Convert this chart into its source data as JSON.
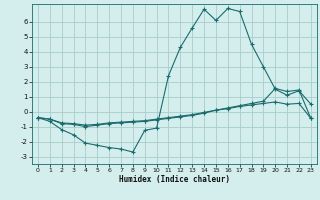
{
  "xlabel": "Humidex (Indice chaleur)",
  "bg_color": "#d4eeee",
  "grid_color": "#aacccc",
  "line_color": "#1a6b6b",
  "xlim": [
    -0.5,
    23.5
  ],
  "ylim": [
    -3.5,
    7.2
  ],
  "yticks": [
    -3,
    -2,
    -1,
    0,
    1,
    2,
    3,
    4,
    5,
    6
  ],
  "xticks": [
    0,
    1,
    2,
    3,
    4,
    5,
    6,
    7,
    8,
    9,
    10,
    11,
    12,
    13,
    14,
    15,
    16,
    17,
    18,
    19,
    20,
    21,
    22,
    23
  ],
  "series1_x": [
    0,
    1,
    2,
    3,
    4,
    5,
    6,
    7,
    8,
    9,
    10,
    11,
    12,
    13,
    14,
    15,
    16,
    17,
    18,
    19,
    20,
    21,
    22,
    23
  ],
  "series1_y": [
    -0.4,
    -0.65,
    -1.2,
    -1.55,
    -2.1,
    -2.25,
    -2.4,
    -2.5,
    -2.7,
    -1.25,
    -1.1,
    2.4,
    4.3,
    5.6,
    6.85,
    6.1,
    6.9,
    6.7,
    4.5,
    3.0,
    1.5,
    1.1,
    1.4,
    0.5
  ],
  "series2_x": [
    0,
    1,
    2,
    3,
    4,
    5,
    6,
    7,
    8,
    9,
    10,
    11,
    12,
    13,
    14,
    15,
    16,
    17,
    18,
    19,
    20,
    21,
    22,
    23
  ],
  "series2_y": [
    -0.4,
    -0.5,
    -0.8,
    -0.85,
    -1.0,
    -0.9,
    -0.8,
    -0.75,
    -0.7,
    -0.65,
    -0.55,
    -0.45,
    -0.35,
    -0.25,
    -0.1,
    0.1,
    0.25,
    0.4,
    0.55,
    0.7,
    1.55,
    1.35,
    1.45,
    -0.45
  ],
  "series3_x": [
    0,
    1,
    2,
    3,
    4,
    5,
    6,
    7,
    8,
    9,
    10,
    11,
    12,
    13,
    14,
    15,
    16,
    17,
    18,
    19,
    20,
    21,
    22,
    23
  ],
  "series3_y": [
    -0.4,
    -0.5,
    -0.75,
    -0.8,
    -0.9,
    -0.85,
    -0.75,
    -0.7,
    -0.65,
    -0.6,
    -0.5,
    -0.4,
    -0.3,
    -0.2,
    -0.05,
    0.1,
    0.2,
    0.35,
    0.45,
    0.55,
    0.65,
    0.5,
    0.55,
    -0.45
  ]
}
